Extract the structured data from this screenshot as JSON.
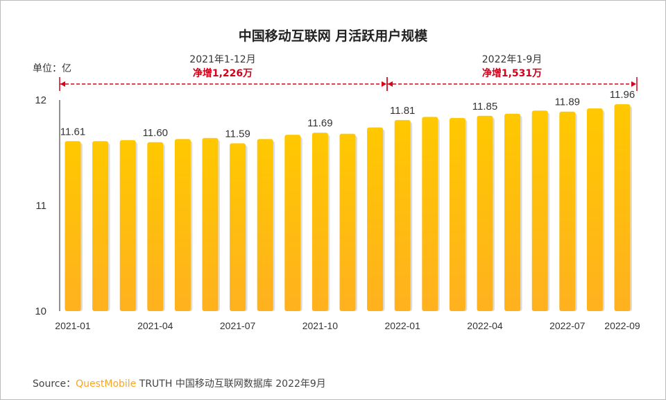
{
  "chart_data": {
    "type": "bar",
    "title": "中国移动互联网 月活跃用户规模",
    "unit_label": "单位：亿",
    "categories": [
      "2021-01",
      "2021-02",
      "2021-03",
      "2021-04",
      "2021-05",
      "2021-06",
      "2021-07",
      "2021-08",
      "2021-09",
      "2021-10",
      "2021-11",
      "2021-12",
      "2022-01",
      "2022-02",
      "2022-03",
      "2022-04",
      "2022-05",
      "2022-06",
      "2022-07",
      "2022-08",
      "2022-09"
    ],
    "values": [
      11.61,
      11.61,
      11.62,
      11.6,
      11.63,
      11.64,
      11.59,
      11.63,
      11.67,
      11.69,
      11.68,
      11.74,
      11.81,
      11.84,
      11.83,
      11.85,
      11.87,
      11.9,
      11.89,
      11.92,
      11.96
    ],
    "data_labels": {
      "2021-01": "11.61",
      "2021-04": "11.60",
      "2021-07": "11.59",
      "2021-10": "11.69",
      "2022-01": "11.81",
      "2022-04": "11.85",
      "2022-07": "11.89",
      "2022-09": "11.96"
    },
    "x_tick_labels": [
      "2021-01",
      "2021-04",
      "2021-07",
      "2021-10",
      "2022-01",
      "2022-04",
      "2022-07",
      "2022-09"
    ],
    "y_ticks": [
      "10",
      "11",
      "12"
    ],
    "ylim": [
      10,
      12
    ],
    "bar_color": "#ffc800",
    "annotations": [
      {
        "period": "2021年1-12月",
        "net": "净增1,226万"
      },
      {
        "period": "2022年1-9月",
        "net": "净增1,531万"
      }
    ],
    "annotation_color": "#d0021b"
  },
  "source": {
    "prefix": "Source：",
    "brand": "QuestMobile",
    "rest": " TRUTH 中国移动互联网数据库 2022年9月"
  }
}
